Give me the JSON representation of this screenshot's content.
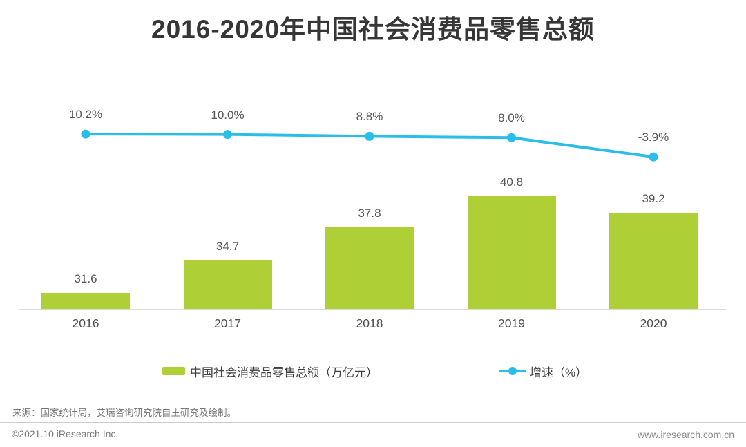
{
  "title": "2016-2020年中国社会消费品零售总额",
  "chart_data": {
    "type": "bar",
    "title": "2016-2020年中国社会消费品零售总额",
    "categories": [
      "2016",
      "2017",
      "2018",
      "2019",
      "2020"
    ],
    "series": [
      {
        "name": "中国社会消费品零售总额（万亿元）",
        "type": "bar",
        "values": [
          31.6,
          34.7,
          37.8,
          40.8,
          39.2
        ],
        "color": "#aed036"
      },
      {
        "name": "增速（%）",
        "type": "line",
        "values": [
          10.2,
          10.0,
          8.8,
          8.0,
          -3.9
        ],
        "color": "#2bbde9"
      }
    ],
    "xlabel": "",
    "ylabel": "",
    "bar_ylim": [
      30,
      42
    ],
    "grid": false,
    "value_labels": true,
    "legend_position": "bottom"
  },
  "legend": {
    "bar_label": "中国社会消费品零售总额（万亿元）",
    "line_label": "增速（%）"
  },
  "footer": {
    "source": "来源：国家统计局，艾瑞咨询研究院自主研究及绘制。",
    "copyright": "©2021.10 iResearch Inc.",
    "website": "www.iresearch.com.cn"
  },
  "colors": {
    "bar": "#aed036",
    "line": "#2bbde9",
    "title_text": "#363636",
    "label_text": "#555555"
  }
}
